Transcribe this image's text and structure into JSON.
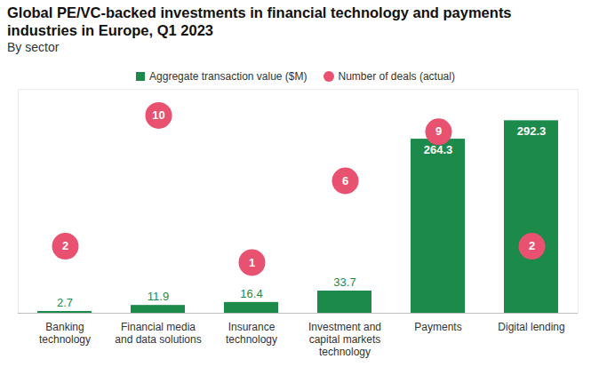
{
  "chart_data": {
    "type": "bar",
    "title": "Global PE/VC-backed investments in financial technology and payments industries in Europe, Q1 2023",
    "subtitle": "By sector",
    "categories": [
      "Banking technology",
      "Financial media and data solutions",
      "Insurance technology",
      "Investment and capital markets technology",
      "Payments",
      "Digital lending"
    ],
    "series": [
      {
        "name": "Aggregate transaction value ($M)",
        "type": "bar",
        "color": "#1b8a4b",
        "values": [
          2.7,
          11.9,
          16.4,
          33.7,
          264.3,
          292.3
        ]
      },
      {
        "name": "Number of deals (actual)",
        "type": "scatter",
        "axis": "y2",
        "marker": "circle",
        "color": "#e8516f",
        "values": [
          2,
          10,
          1,
          6,
          9,
          2
        ]
      }
    ],
    "ylim": [
      0,
      340
    ],
    "yticks": [],
    "y2lim": [
      -2.1,
      11.6
    ],
    "y2ticks": [],
    "data_labels": true,
    "tick_labels": "x",
    "legend": "top"
  }
}
